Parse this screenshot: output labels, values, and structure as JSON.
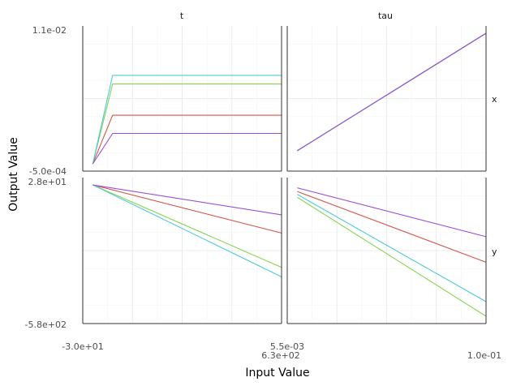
{
  "chart_data": {
    "type": "line",
    "facet_rows": [
      "x",
      "y"
    ],
    "facet_cols": [
      "t",
      "tau"
    ],
    "xlabel": "Input Value",
    "ylabel": "Output Value",
    "x_tick_labels": {
      "t": [
        "-3.0e+01",
        "5.5e-03",
        "6.3e+02"
      ],
      "tau": [
        "1.0e-01"
      ]
    },
    "y_tick_labels": {
      "x": [
        "1.1e-02",
        "-5.0e-04"
      ],
      "y": [
        "2.8e+01",
        "-5.8e+02"
      ]
    },
    "grid": true,
    "legend": "none",
    "series_colors": [
      "#d2574c",
      "#85d44e",
      "#4dc9d9",
      "#9b4fd6"
    ],
    "panels": [
      {
        "row": "x",
        "col": "t",
        "series": [
          {
            "color": "#d2574c",
            "points": [
              [
                0.05,
                0.05
              ],
              [
                0.15,
                0.385
              ],
              [
                1.0,
                0.385
              ]
            ]
          },
          {
            "color": "#85d44e",
            "points": [
              [
                0.05,
                0.05
              ],
              [
                0.15,
                0.6
              ],
              [
                1.0,
                0.6
              ]
            ]
          },
          {
            "color": "#4dc9d9",
            "points": [
              [
                0.05,
                0.05
              ],
              [
                0.15,
                0.66
              ],
              [
                1.0,
                0.66
              ]
            ]
          },
          {
            "color": "#9b4fd6",
            "points": [
              [
                0.05,
                0.05
              ],
              [
                0.15,
                0.26
              ],
              [
                1.0,
                0.26
              ]
            ]
          }
        ]
      },
      {
        "row": "x",
        "col": "tau",
        "series": [
          {
            "color": "#d2574c",
            "points": [
              [
                0.05,
                0.14
              ],
              [
                1.0,
                0.95
              ]
            ]
          },
          {
            "color": "#85d44e",
            "points": [
              [
                0.05,
                0.14
              ],
              [
                1.0,
                0.95
              ]
            ]
          },
          {
            "color": "#4dc9d9",
            "points": [
              [
                0.05,
                0.14
              ],
              [
                1.0,
                0.95
              ]
            ]
          },
          {
            "color": "#9b4fd6",
            "points": [
              [
                0.05,
                0.14
              ],
              [
                1.0,
                0.95
              ]
            ]
          }
        ]
      },
      {
        "row": "y",
        "col": "t",
        "series": [
          {
            "color": "#d2574c",
            "points": [
              [
                0.05,
                0.95
              ],
              [
                1.0,
                0.62
              ]
            ]
          },
          {
            "color": "#85d44e",
            "points": [
              [
                0.05,
                0.95
              ],
              [
                1.0,
                0.385
              ]
            ]
          },
          {
            "color": "#4dc9d9",
            "points": [
              [
                0.05,
                0.95
              ],
              [
                1.0,
                0.32
              ]
            ]
          },
          {
            "color": "#9b4fd6",
            "points": [
              [
                0.05,
                0.95
              ],
              [
                1.0,
                0.745
              ]
            ]
          }
        ]
      },
      {
        "row": "y",
        "col": "tau",
        "series": [
          {
            "color": "#d2574c",
            "points": [
              [
                0.05,
                0.905
              ],
              [
                1.0,
                0.42
              ]
            ]
          },
          {
            "color": "#85d44e",
            "points": [
              [
                0.05,
                0.865
              ],
              [
                1.0,
                0.05
              ]
            ]
          },
          {
            "color": "#4dc9d9",
            "points": [
              [
                0.05,
                0.885
              ],
              [
                1.0,
                0.15
              ]
            ]
          },
          {
            "color": "#9b4fd6",
            "points": [
              [
                0.05,
                0.93
              ],
              [
                1.0,
                0.595
              ]
            ]
          }
        ]
      }
    ]
  }
}
